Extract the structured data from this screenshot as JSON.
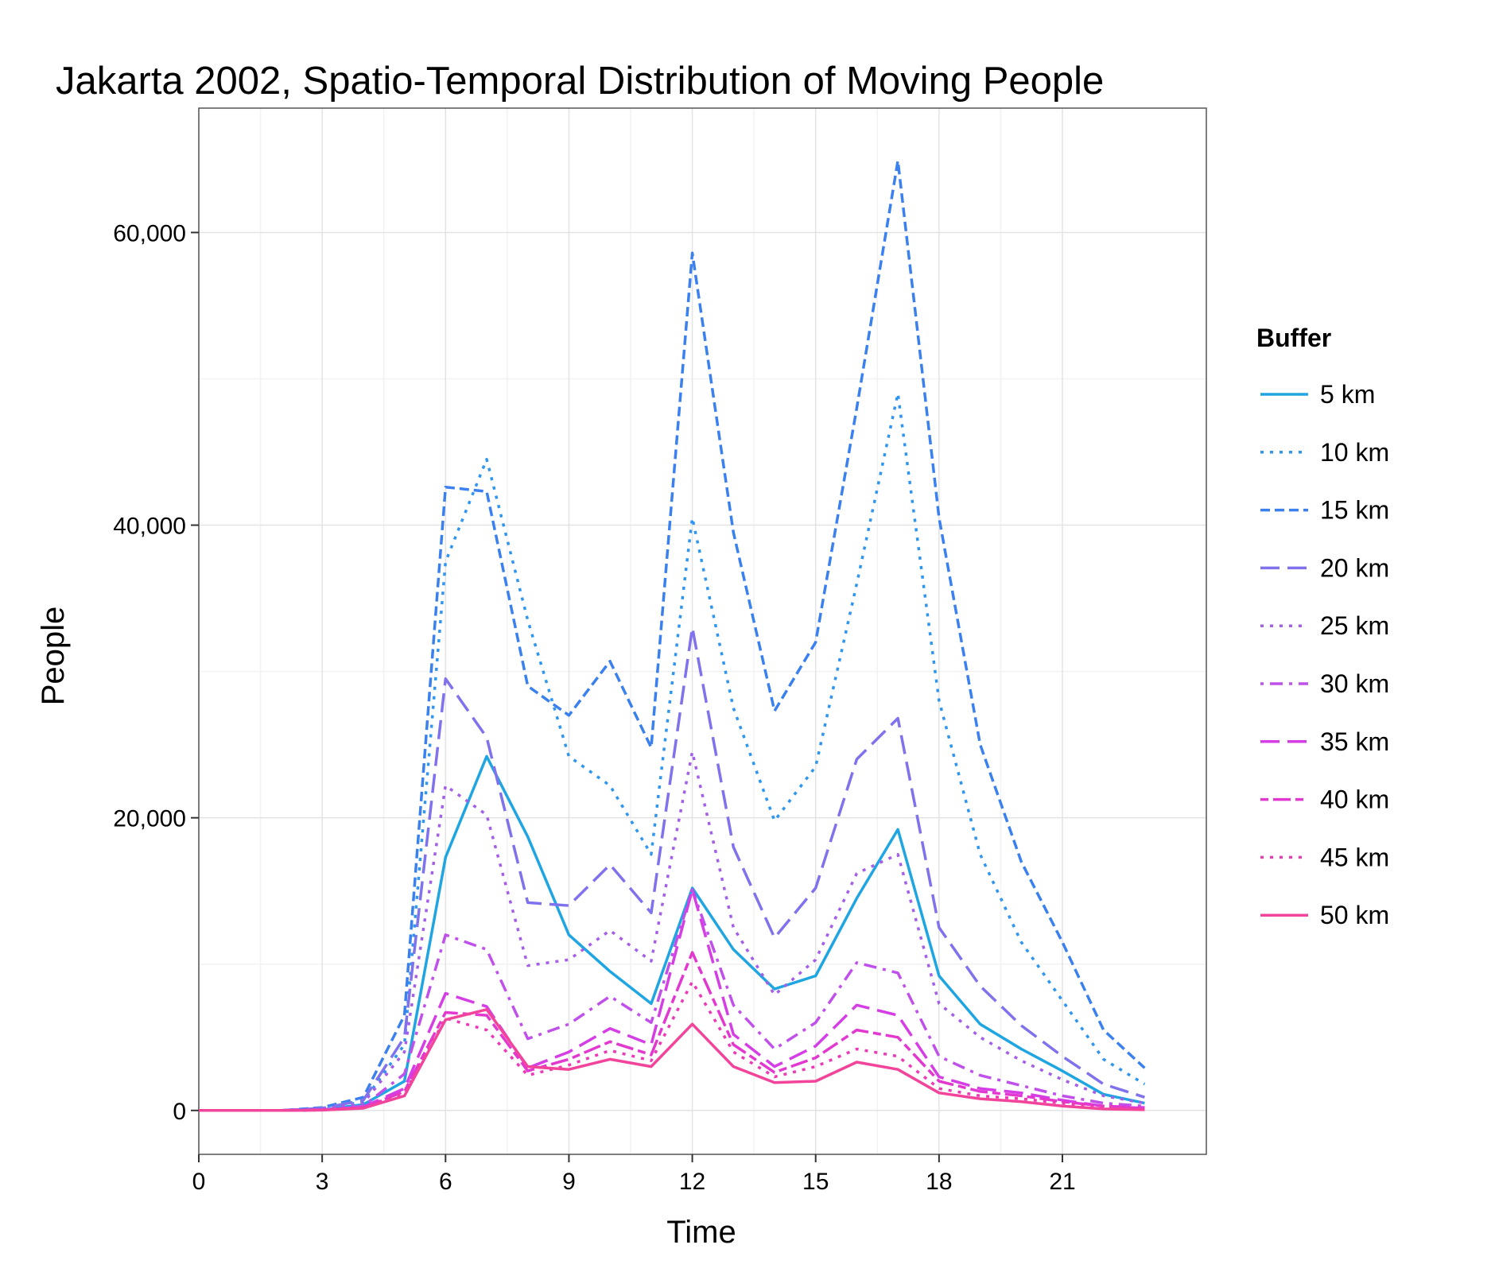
{
  "chart_data": {
    "type": "line",
    "title": "Jakarta 2002, Spatio-Temporal Distribution of Moving People",
    "xlabel": "Time",
    "ylabel": "People",
    "xlim": [
      0,
      24.5
    ],
    "ylim": [
      -3000,
      68500
    ],
    "x_ticks": [
      0,
      3,
      6,
      9,
      12,
      15,
      18,
      21
    ],
    "x_tick_labels": [
      "0",
      "3",
      "6",
      "9",
      "12",
      "15",
      "18",
      "21"
    ],
    "y_ticks": [
      0,
      20000,
      40000,
      60000
    ],
    "y_tick_labels": [
      "0",
      "20,000",
      "40,000",
      "60,000"
    ],
    "y_minor_ticks": [
      10000,
      30000,
      50000
    ],
    "grid": true,
    "legend": {
      "title": "Buffer",
      "placement": "right"
    },
    "x": [
      0,
      1,
      2,
      3,
      4,
      5,
      6,
      7,
      8,
      9,
      10,
      11,
      12,
      13,
      14,
      15,
      16,
      17,
      18,
      19,
      20,
      21,
      22,
      23
    ],
    "series": [
      {
        "name": "5 km",
        "color": "#1ea5e2",
        "dash": "solid",
        "values": [
          0,
          0,
          0,
          50,
          400,
          2000,
          17300,
          24200,
          18700,
          12000,
          9500,
          7300,
          15200,
          11000,
          8300,
          9200,
          14500,
          19200,
          9200,
          5900,
          4200,
          2700,
          1100,
          500
        ]
      },
      {
        "name": "10 km",
        "color": "#2f95ee",
        "dash": "dotted",
        "values": [
          0,
          0,
          0,
          100,
          600,
          4500,
          37500,
          44500,
          33500,
          24200,
          22200,
          17500,
          40500,
          27500,
          19800,
          23500,
          36000,
          49000,
          28000,
          17500,
          11500,
          7500,
          3500,
          1800
        ]
      },
      {
        "name": "15 km",
        "color": "#3b80ef",
        "dash": "dashed",
        "values": [
          0,
          0,
          0,
          200,
          900,
          6500,
          42600,
          42300,
          29000,
          27000,
          30700,
          24800,
          58600,
          39500,
          27300,
          32000,
          48000,
          64900,
          40500,
          25000,
          17000,
          11500,
          5500,
          2900
        ]
      },
      {
        "name": "20 km",
        "color": "#7f72ec",
        "dash": "longdash",
        "values": [
          0,
          0,
          0,
          150,
          700,
          5000,
          29500,
          25500,
          14200,
          14000,
          16800,
          13500,
          33000,
          18000,
          11800,
          15200,
          24000,
          26800,
          12500,
          8500,
          5800,
          3700,
          1800,
          900
        ]
      },
      {
        "name": "25 km",
        "color": "#a45fe8",
        "dash": "dotted",
        "values": [
          0,
          0,
          0,
          100,
          500,
          4000,
          22200,
          20200,
          9900,
          10300,
          12300,
          10200,
          24500,
          12500,
          7900,
          10300,
          16200,
          17500,
          7300,
          5000,
          3400,
          2100,
          1000,
          500
        ]
      },
      {
        "name": "30 km",
        "color": "#c050ea",
        "dash": "dotdash",
        "values": [
          0,
          0,
          0,
          50,
          300,
          2500,
          12000,
          11000,
          4900,
          5900,
          7800,
          6000,
          15100,
          7200,
          4200,
          6000,
          10100,
          9400,
          3700,
          2400,
          1700,
          1000,
          500,
          300
        ]
      },
      {
        "name": "35 km",
        "color": "#d53ee4",
        "dash": "longdash",
        "values": [
          0,
          0,
          0,
          50,
          250,
          1500,
          8000,
          7100,
          2900,
          4000,
          5600,
          4500,
          15100,
          5200,
          3000,
          4400,
          7200,
          6500,
          2300,
          1500,
          1200,
          700,
          300,
          200
        ]
      },
      {
        "name": "40 km",
        "color": "#e338d0",
        "dash": "twodash",
        "values": [
          0,
          0,
          0,
          30,
          200,
          1300,
          6700,
          6500,
          2700,
          3500,
          4700,
          3800,
          10800,
          4500,
          2600,
          3600,
          5500,
          5000,
          2000,
          1300,
          1000,
          600,
          300,
          150
        ]
      },
      {
        "name": "45 km",
        "color": "#ec3ab6",
        "dash": "dotted",
        "values": [
          0,
          0,
          0,
          30,
          200,
          1200,
          6300,
          5500,
          2400,
          3100,
          4100,
          3400,
          8800,
          4000,
          2300,
          3000,
          4200,
          3700,
          1500,
          1000,
          800,
          500,
          250,
          120
        ]
      },
      {
        "name": "50 km",
        "color": "#f1449a",
        "dash": "solid",
        "values": [
          0,
          0,
          0,
          20,
          150,
          1000,
          6200,
          6900,
          3000,
          2800,
          3500,
          3000,
          5900,
          3000,
          1900,
          2000,
          3300,
          2800,
          1200,
          800,
          600,
          300,
          100,
          50
        ]
      }
    ]
  }
}
